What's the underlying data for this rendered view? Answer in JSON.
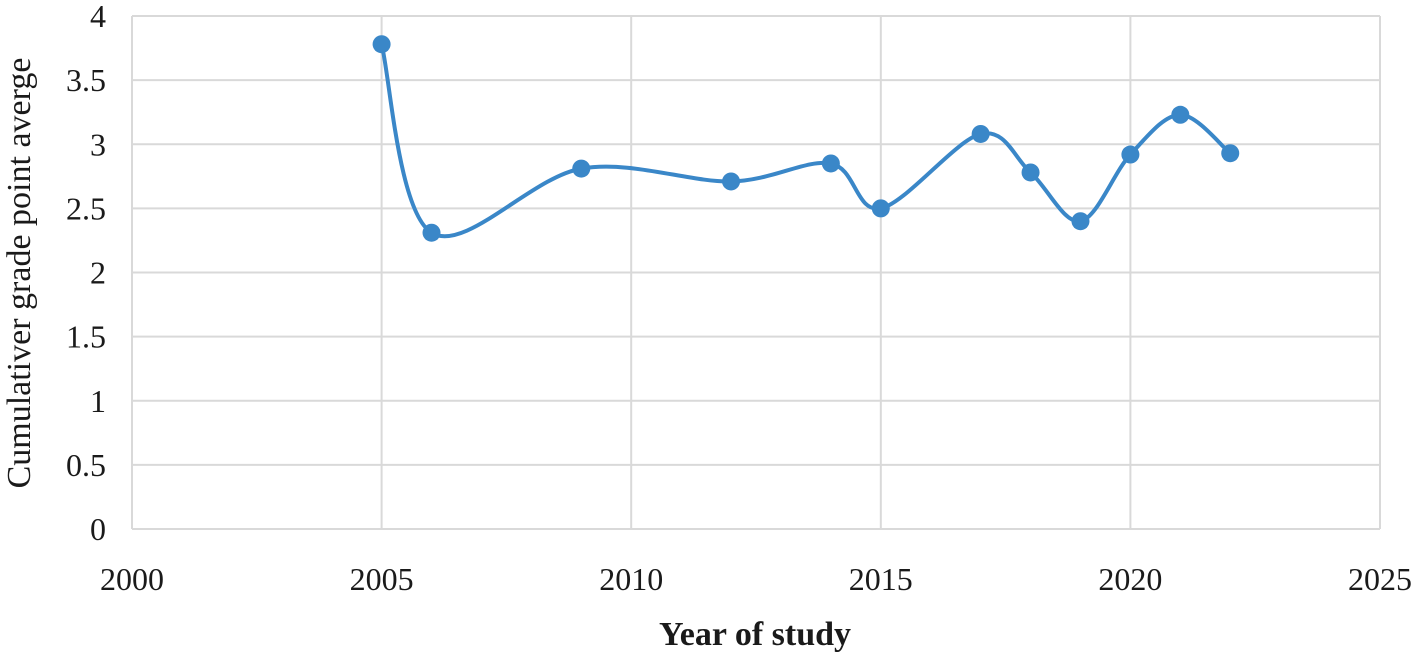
{
  "chart_data": {
    "type": "scatter",
    "title": "",
    "xlabel": "Year of study",
    "ylabel": "Cumulativer grade point averge",
    "xlim": [
      2000,
      2025
    ],
    "ylim": [
      0,
      4
    ],
    "x_ticks": [
      "2000",
      "2005",
      "2010",
      "2015",
      "2020",
      "2025"
    ],
    "y_ticks": [
      "0",
      "0.5",
      "1",
      "1.5",
      "2",
      "2.5",
      "3",
      "3.5",
      "4"
    ],
    "x_tick_values": [
      2000,
      2005,
      2010,
      2015,
      2020,
      2025
    ],
    "y_tick_values": [
      0,
      0.5,
      1,
      1.5,
      2,
      2.5,
      3,
      3.5,
      4
    ],
    "grid": true,
    "smooth_line": true,
    "legend": "none",
    "series": [
      {
        "color": "#3a87c8",
        "x": [
          2005,
          2006,
          2009,
          2012,
          2014,
          2015,
          2017,
          2018,
          2019,
          2020,
          2021,
          2022
        ],
        "y": [
          3.78,
          2.31,
          2.81,
          2.71,
          2.85,
          2.5,
          3.08,
          2.78,
          2.4,
          2.92,
          3.23,
          2.93
        ]
      }
    ]
  }
}
